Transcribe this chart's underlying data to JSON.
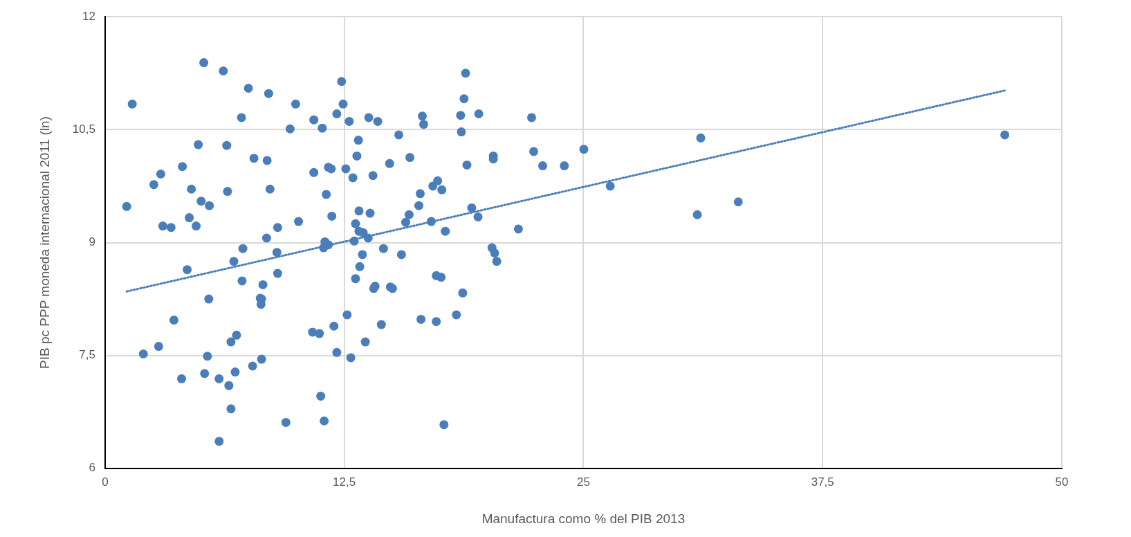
{
  "chart_data": {
    "type": "scatter",
    "xlabel": "Manufactura como % del PIB 2013",
    "ylabel": "PIB pc PPP moneda internacional 2011 (ln)",
    "xlim": [
      0,
      50
    ],
    "xticks": [
      0,
      {
        "value": 12.5,
        "label": "12,5"
      },
      25,
      {
        "value": 37.5,
        "label": "37,5"
      },
      50
    ],
    "ylim": [
      6,
      12
    ],
    "yticks": [
      6,
      {
        "value": 7.5,
        "label": "7,5"
      },
      9,
      {
        "value": 10.5,
        "label": "10,5"
      },
      12
    ],
    "grid": true,
    "legend": false,
    "marker": "circle",
    "series": [
      {
        "type": "scatter",
        "color": "#4a7ebb",
        "x": [
          1.13,
          1.42,
          2.0,
          2.55,
          2.8,
          2.91,
          3.02,
          3.45,
          3.6,
          4.0,
          4.04,
          4.29,
          4.4,
          4.51,
          4.76,
          4.87,
          5.02,
          5.16,
          5.2,
          5.35,
          5.42,
          5.45,
          5.96,
          5.96,
          6.18,
          6.36,
          6.4,
          6.47,
          6.58,
          6.58,
          6.73,
          6.8,
          6.87,
          7.13,
          7.16,
          7.2,
          7.49,
          7.71,
          7.78,
          8.11,
          8.15,
          8.18,
          8.18,
          8.25,
          8.44,
          8.47,
          8.55,
          8.62,
          8.98,
          9.02,
          9.02,
          9.45,
          9.67,
          9.96,
          10.11,
          10.84,
          10.91,
          10.91,
          11.2,
          11.27,
          11.35,
          11.42,
          11.45,
          11.49,
          11.56,
          11.67,
          11.67,
          11.82,
          11.85,
          11.96,
          12.11,
          12.11,
          12.36,
          12.44,
          12.58,
          12.65,
          12.76,
          12.84,
          12.95,
          13.02,
          13.09,
          13.09,
          13.16,
          13.24,
          13.27,
          13.27,
          13.31,
          13.45,
          13.49,
          13.6,
          13.75,
          13.78,
          13.85,
          14.0,
          14.04,
          14.11,
          14.25,
          14.44,
          14.55,
          14.87,
          14.91,
          15.02,
          15.35,
          15.49,
          15.71,
          15.89,
          15.93,
          16.4,
          16.47,
          16.51,
          16.58,
          16.65,
          17.05,
          17.13,
          17.31,
          17.31,
          17.38,
          17.56,
          17.6,
          17.71,
          17.78,
          18.36,
          18.58,
          18.62,
          18.69,
          18.76,
          18.84,
          18.91,
          19.16,
          19.49,
          19.53,
          20.22,
          20.29,
          20.29,
          20.36,
          20.47,
          21.6,
          22.29,
          22.4,
          22.87,
          24.0,
          25.02,
          26.4,
          30.95,
          31.13,
          33.09,
          47.02
        ],
        "values": [
          9.48,
          10.84,
          7.52,
          9.77,
          7.62,
          9.91,
          9.22,
          9.2,
          7.97,
          7.19,
          10.01,
          8.64,
          9.33,
          9.71,
          9.22,
          10.3,
          9.55,
          11.39,
          7.26,
          7.49,
          8.25,
          9.49,
          7.19,
          6.36,
          11.28,
          10.29,
          9.68,
          7.1,
          7.68,
          6.79,
          8.75,
          7.28,
          7.77,
          10.66,
          8.49,
          8.92,
          11.05,
          7.36,
          10.12,
          8.26,
          8.18,
          8.25,
          7.45,
          8.44,
          9.06,
          10.09,
          10.98,
          9.71,
          8.87,
          9.2,
          8.59,
          6.61,
          10.51,
          10.84,
          9.28,
          7.81,
          10.63,
          9.93,
          7.79,
          6.96,
          10.52,
          8.93,
          6.63,
          9.01,
          9.64,
          10.0,
          8.97,
          9.98,
          9.35,
          7.89,
          7.54,
          10.71,
          11.14,
          10.84,
          9.98,
          8.04,
          10.61,
          7.47,
          9.86,
          9.02,
          9.25,
          8.52,
          10.15,
          10.36,
          9.42,
          9.15,
          8.68,
          8.84,
          9.13,
          7.68,
          9.06,
          10.66,
          9.39,
          9.89,
          8.39,
          8.42,
          10.61,
          7.91,
          8.92,
          10.05,
          8.41,
          8.39,
          10.43,
          8.84,
          9.27,
          9.37,
          10.13,
          9.49,
          9.65,
          7.98,
          10.68,
          10.57,
          9.28,
          9.75,
          7.95,
          8.56,
          9.82,
          8.54,
          9.7,
          6.58,
          9.15,
          8.04,
          10.69,
          10.47,
          8.33,
          10.91,
          11.25,
          10.03,
          9.46,
          9.34,
          10.71,
          8.93,
          10.15,
          10.11,
          8.86,
          8.75,
          9.18,
          10.66,
          10.21,
          10.02,
          10.02,
          10.24,
          9.75,
          9.37,
          10.39,
          9.54,
          10.43
        ]
      },
      {
        "type": "line",
        "color": "#4a7ebb",
        "line_style": "dotted",
        "marker": "none",
        "x": [
          1.13,
          47.02
        ],
        "values": [
          8.35,
          11.02
        ]
      }
    ]
  }
}
